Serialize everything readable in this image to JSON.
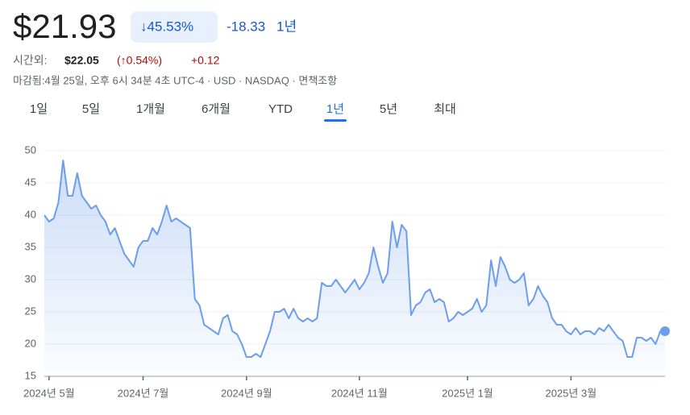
{
  "header": {
    "price": "$21.93",
    "change_percent": "↓45.53%",
    "change": "-18.33",
    "period": "1년",
    "after_hours_label": "시간외:",
    "after_hours_price": "$22.05",
    "after_hours_percent": "(↑0.54%)",
    "after_hours_change": "+0.12",
    "meta": "마감됨:4월 25일, 오후 6시 34분 4초 UTC-4 · USD · NASDAQ · 면책조항"
  },
  "tabs": [
    "1일",
    "5일",
    "1개월",
    "6개월",
    "YTD",
    "1년",
    "5년",
    "최대"
  ],
  "selected_tab": 5,
  "chart_data": {
    "type": "line",
    "color": "#6d9eeb",
    "values": [
      40,
      39,
      39.5,
      42,
      48.5,
      43,
      43,
      46.5,
      43,
      42,
      41,
      41.5,
      40,
      39,
      37,
      38,
      36,
      34,
      33,
      32,
      35,
      36,
      36,
      38,
      37,
      39,
      41.5,
      39,
      39.5,
      39,
      38.5,
      38,
      27,
      26,
      23,
      22.5,
      22,
      21.5,
      24,
      24.5,
      22,
      21.5,
      20,
      18,
      18,
      18.5,
      18,
      20,
      22,
      25,
      25,
      25.5,
      24,
      25.5,
      24,
      23.5,
      24,
      23.5,
      24,
      29.5,
      29,
      29,
      30,
      29,
      28,
      29,
      30,
      28.5,
      29.5,
      31,
      35,
      32,
      29.5,
      31,
      39,
      35,
      38.5,
      37.5,
      24.5,
      26,
      26.5,
      28,
      28.5,
      26.5,
      27,
      26.5,
      23.5,
      24,
      25,
      24.5,
      25,
      25.5,
      27,
      25,
      26,
      33,
      29,
      33.5,
      32,
      30,
      29.5,
      30,
      31,
      26,
      27,
      29,
      27.5,
      26.5,
      24,
      23,
      23,
      22,
      21.5,
      22.5,
      21.5,
      22,
      22,
      21.5,
      22.5,
      22,
      23,
      22,
      21,
      20.5,
      18,
      18,
      21,
      21,
      20.5,
      21,
      20,
      22,
      22
    ],
    "xlim": [
      0,
      132
    ],
    "xticks": [
      {
        "value": 1,
        "label": "2024년 5월"
      },
      {
        "value": 21,
        "label": "2024년 7월"
      },
      {
        "value": 43,
        "label": "2024년 9월"
      },
      {
        "value": 67,
        "label": "2024년 11월"
      },
      {
        "value": 90,
        "label": "2025년 1월"
      },
      {
        "value": 112,
        "label": "2025년 3월"
      }
    ],
    "ylim": [
      15,
      50
    ],
    "yticks": [
      15,
      20,
      25,
      30,
      35,
      40,
      45,
      50
    ],
    "grid": true
  }
}
